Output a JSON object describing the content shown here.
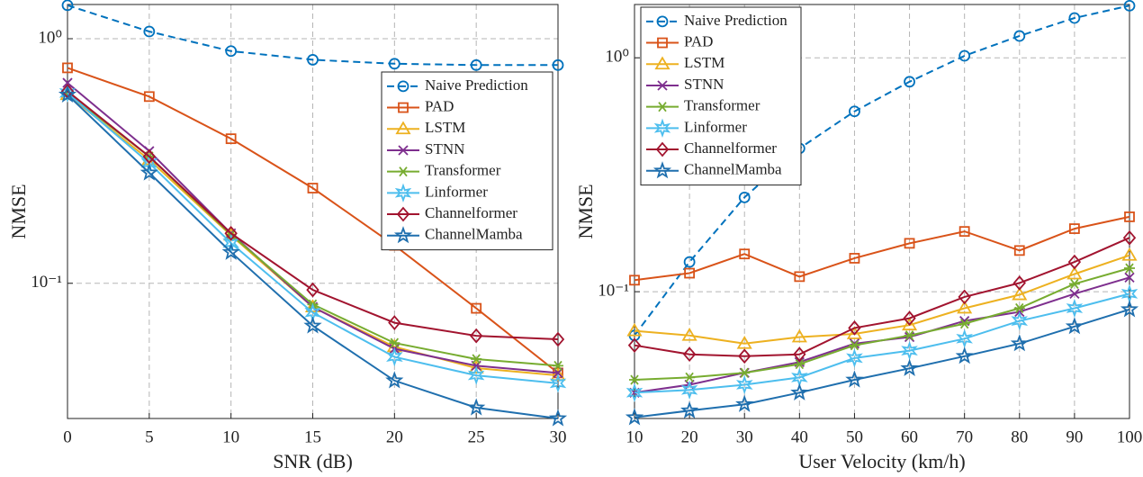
{
  "chart_data": [
    {
      "type": "line",
      "xlabel": "SNR (dB)",
      "ylabel": "NMSE",
      "x": [
        0,
        5,
        10,
        15,
        20,
        25,
        30
      ],
      "xlim": [
        0,
        30
      ],
      "xticks": [
        0,
        5,
        10,
        15,
        20,
        25,
        30
      ],
      "ylim": [
        0.028,
        1.38
      ],
      "yscale": "log",
      "yticks": [
        {
          "value": 0.1,
          "label": "10⁻¹"
        },
        {
          "value": 1,
          "label": "10⁰"
        }
      ],
      "grid": true,
      "legend": "upper right",
      "series": [
        {
          "name": "Naive Prediction",
          "color": "#0072BD",
          "marker": "o",
          "linestyle": "dashed",
          "values": [
            1.37,
            1.07,
            0.89,
            0.82,
            0.79,
            0.78,
            0.78
          ]
        },
        {
          "name": "PAD",
          "color": "#D95319",
          "marker": "s",
          "linestyle": "solid",
          "values": [
            0.76,
            0.58,
            0.39,
            0.245,
            0.143,
            0.079,
            0.043
          ]
        },
        {
          "name": "LSTM",
          "color": "#EDB120",
          "marker": "^",
          "linestyle": "solid",
          "values": [
            0.59,
            0.32,
            0.157,
            0.08,
            0.055,
            0.045,
            0.042
          ]
        },
        {
          "name": "STNN",
          "color": "#7E2F8E",
          "marker": "x",
          "linestyle": "solid",
          "values": [
            0.66,
            0.347,
            0.16,
            0.08,
            0.054,
            0.046,
            0.043
          ]
        },
        {
          "name": "Transformer",
          "color": "#77AC30",
          "marker": "*",
          "linestyle": "solid",
          "values": [
            0.6,
            0.33,
            0.158,
            0.082,
            0.057,
            0.049,
            0.046
          ]
        },
        {
          "name": "Linformer",
          "color": "#4DBEEE",
          "marker": "h",
          "linestyle": "solid",
          "values": [
            0.6,
            0.31,
            0.146,
            0.076,
            0.05,
            0.042,
            0.039
          ]
        },
        {
          "name": "Channelformer",
          "color": "#A2142F",
          "marker": "d",
          "linestyle": "solid",
          "values": [
            0.61,
            0.33,
            0.16,
            0.094,
            0.069,
            0.061,
            0.059
          ]
        },
        {
          "name": "ChannelMamba",
          "color": "#1F6FAE",
          "marker": "p",
          "linestyle": "solid",
          "values": [
            0.59,
            0.283,
            0.134,
            0.067,
            0.04,
            0.031,
            0.028
          ]
        }
      ]
    },
    {
      "type": "line",
      "xlabel": "User Velocity (km/h)",
      "ylabel": "NMSE",
      "x": [
        10,
        20,
        30,
        40,
        50,
        60,
        70,
        80,
        90,
        100
      ],
      "xlim": [
        10,
        100
      ],
      "xticks": [
        10,
        20,
        30,
        40,
        50,
        60,
        70,
        80,
        90,
        100
      ],
      "ylim": [
        0.0287,
        1.69
      ],
      "yscale": "log",
      "yticks": [
        {
          "value": 0.1,
          "label": "10⁻¹"
        },
        {
          "value": 1,
          "label": "10⁰"
        }
      ],
      "grid": true,
      "legend": "upper left",
      "series": [
        {
          "name": "Naive Prediction",
          "color": "#0072BD",
          "marker": "o",
          "linestyle": "dashed",
          "values": [
            0.065,
            0.134,
            0.253,
            0.41,
            0.59,
            0.79,
            1.02,
            1.24,
            1.48,
            1.67
          ]
        },
        {
          "name": "PAD",
          "color": "#D95319",
          "marker": "s",
          "linestyle": "solid",
          "values": [
            0.112,
            0.12,
            0.145,
            0.116,
            0.139,
            0.161,
            0.181,
            0.15,
            0.186,
            0.209
          ]
        },
        {
          "name": "LSTM",
          "color": "#EDB120",
          "marker": "^",
          "linestyle": "solid",
          "values": [
            0.068,
            0.065,
            0.06,
            0.064,
            0.066,
            0.072,
            0.085,
            0.097,
            0.119,
            0.143
          ]
        },
        {
          "name": "STNN",
          "color": "#7E2F8E",
          "marker": "x",
          "linestyle": "solid",
          "values": [
            0.037,
            0.04,
            0.045,
            0.05,
            0.06,
            0.064,
            0.075,
            0.082,
            0.098,
            0.115
          ]
        },
        {
          "name": "Transformer",
          "color": "#77AC30",
          "marker": "*",
          "linestyle": "solid",
          "values": [
            0.042,
            0.043,
            0.045,
            0.049,
            0.059,
            0.065,
            0.073,
            0.085,
            0.108,
            0.126
          ]
        },
        {
          "name": "Linformer",
          "color": "#4DBEEE",
          "marker": "h",
          "linestyle": "solid",
          "values": [
            0.037,
            0.038,
            0.04,
            0.043,
            0.052,
            0.056,
            0.063,
            0.075,
            0.085,
            0.098
          ]
        },
        {
          "name": "Channelformer",
          "color": "#A2142F",
          "marker": "d",
          "linestyle": "solid",
          "values": [
            0.059,
            0.054,
            0.053,
            0.054,
            0.07,
            0.077,
            0.095,
            0.109,
            0.134,
            0.17
          ]
        },
        {
          "name": "ChannelMamba",
          "color": "#1F6FAE",
          "marker": "p",
          "linestyle": "solid",
          "values": [
            0.029,
            0.031,
            0.033,
            0.037,
            0.042,
            0.047,
            0.053,
            0.06,
            0.071,
            0.084
          ]
        }
      ]
    }
  ]
}
